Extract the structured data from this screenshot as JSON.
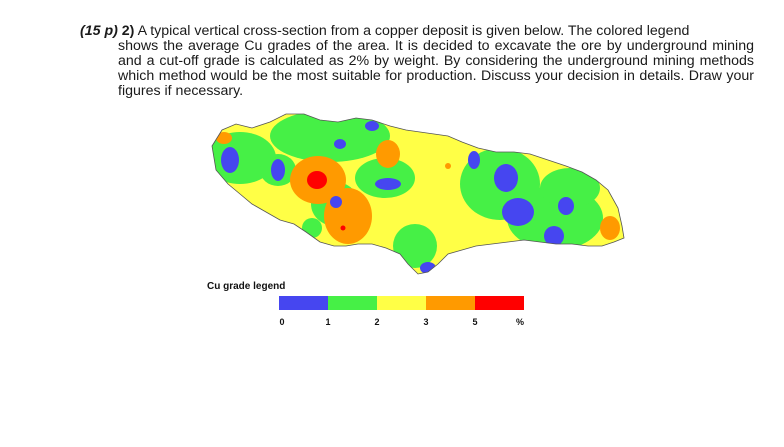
{
  "question": {
    "points": "(15 p)",
    "number": "2)",
    "text_first_line": "A typical vertical cross-section from a copper deposit is given below. The colored legend",
    "text_rest": "shows the average Cu grades of the area. It is decided to excavate the ore by underground mining and a cut-off grade is calculated as 2% by weight. By considering the underground mining methods which method would be the most suitable for production. Discuss your decision in details. Draw your figures if necessary."
  },
  "legend": {
    "title": "Cu grade legend",
    "colors": [
      "#4646f0",
      "#46f046",
      "#ffff46",
      "#ff9a00",
      "#ff0000"
    ],
    "ticks": [
      "0",
      "1",
      "2",
      "3",
      "5",
      "%"
    ]
  }
}
